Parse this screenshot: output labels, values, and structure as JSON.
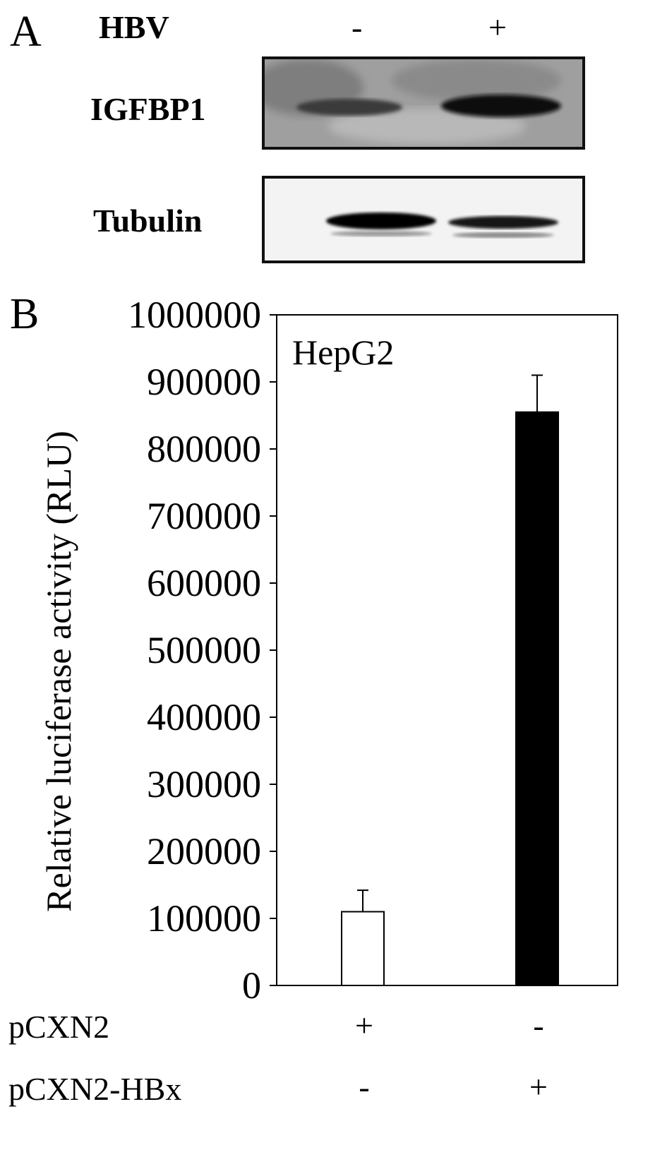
{
  "panel_a": {
    "letter": "A",
    "condition_label": "HBV",
    "lanes": [
      "-",
      "+"
    ],
    "blots": [
      {
        "label": "IGFBP1"
      },
      {
        "label": "Tubulin"
      }
    ]
  },
  "panel_b": {
    "letter": "B",
    "conditions": [
      {
        "label": "pCXN2",
        "values": [
          "+",
          "-"
        ]
      },
      {
        "label": "pCXN2-HBx",
        "values": [
          "-",
          "+"
        ]
      }
    ]
  },
  "chart_data": {
    "type": "bar",
    "annotation": "HepG2",
    "ylabel": "Relative luciferase activity (RLU)",
    "xlabel": "",
    "ylim": [
      0,
      1000000
    ],
    "yticks": [
      "0",
      "100000",
      "200000",
      "300000",
      "400000",
      "500000",
      "600000",
      "700000",
      "800000",
      "900000",
      "1000000"
    ],
    "categories": [
      "pCXN2",
      "pCXN2-HBx"
    ],
    "values": [
      110000,
      855000
    ],
    "errors": [
      32000,
      55000
    ],
    "bar_colors": [
      "#ffffff",
      "#000000"
    ],
    "grid": false
  }
}
